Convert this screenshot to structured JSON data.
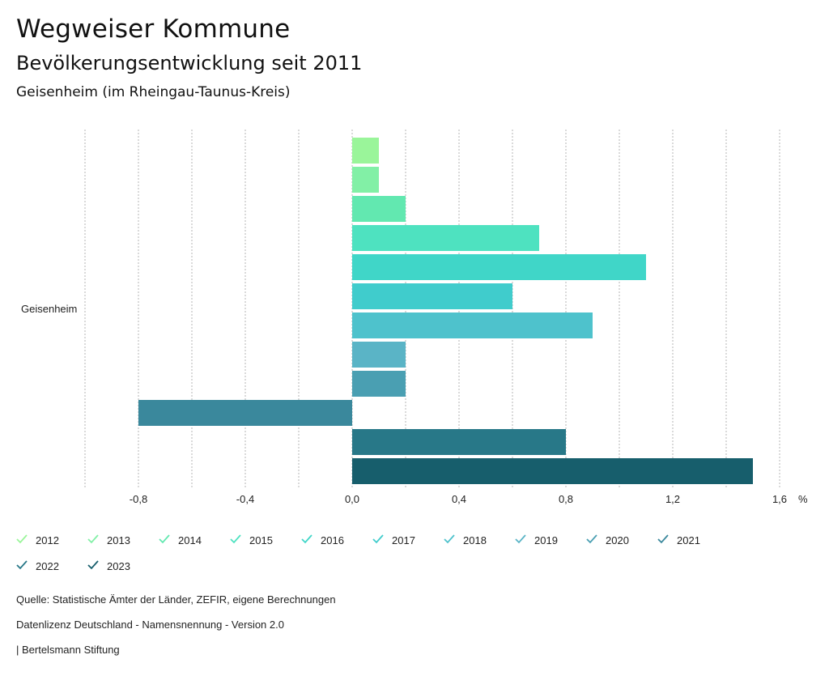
{
  "header": {
    "title": "Wegweiser Kommune",
    "subtitle": "Bevölkerungsentwicklung seit 2011",
    "region": "Geisenheim (im Rheingau-Taunus-Kreis)"
  },
  "chart_data": {
    "type": "bar",
    "orientation": "horizontal",
    "categories": [
      "Geisenheim"
    ],
    "series": [
      {
        "name": "2012",
        "values": [
          0.1
        ],
        "color": "#9af59a"
      },
      {
        "name": "2013",
        "values": [
          0.1
        ],
        "color": "#82f0a6"
      },
      {
        "name": "2014",
        "values": [
          0.2
        ],
        "color": "#62e8b0"
      },
      {
        "name": "2015",
        "values": [
          0.7
        ],
        "color": "#4ee2c0"
      },
      {
        "name": "2016",
        "values": [
          1.1
        ],
        "color": "#40d6c8"
      },
      {
        "name": "2017",
        "values": [
          0.6
        ],
        "color": "#40cccc"
      },
      {
        "name": "2018",
        "values": [
          0.9
        ],
        "color": "#4ec2cc"
      },
      {
        "name": "2019",
        "values": [
          0.2
        ],
        "color": "#5ab4c6"
      },
      {
        "name": "2020",
        "values": [
          0.2
        ],
        "color": "#4a9fb2"
      },
      {
        "name": "2021",
        "values": [
          -0.8
        ],
        "color": "#3a889c"
      },
      {
        "name": "2022",
        "values": [
          0.8
        ],
        "color": "#287888"
      },
      {
        "name": "2023",
        "values": [
          1.5
        ],
        "color": "#175e6c"
      }
    ],
    "xlim": [
      -1.0,
      1.6
    ],
    "ticks": [
      "-0,8",
      "-0,4",
      "0,0",
      "0,4",
      "0,8",
      "1,2",
      "1,6"
    ],
    "tick_values": [
      -0.8,
      -0.4,
      0.0,
      0.4,
      0.8,
      1.2,
      1.6
    ],
    "unit": "%",
    "grid": true,
    "legend_position": "bottom"
  },
  "footer": {
    "source": "Quelle: Statistische Ämter der Länder, ZEFIR, eigene Berechnungen",
    "license": "Datenlizenz Deutschland - Namensnennung - Version 2.0",
    "publisher": "| Bertelsmann Stiftung"
  }
}
